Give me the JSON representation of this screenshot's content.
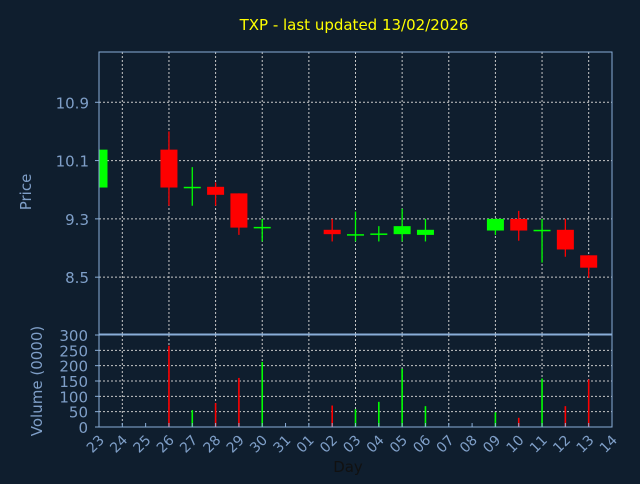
{
  "chart_data": [
    {
      "type": "candlestick",
      "title": "TXP - last updated 13/02/2026",
      "ylabel": "Price",
      "xlabel": "",
      "ylim": [
        7.72,
        11.59
      ],
      "yticks": [
        "8.5",
        "9.3",
        "10.1",
        "10.9"
      ],
      "grid": true,
      "x": [
        "23",
        "24",
        "25",
        "26",
        "27",
        "28",
        "29",
        "30",
        "31",
        "01",
        "02",
        "03",
        "04",
        "05",
        "06",
        "07",
        "08",
        "09",
        "10",
        "11",
        "12",
        "13",
        "14"
      ],
      "candles": [
        {
          "day": "23",
          "open": 9.73,
          "high": 10.25,
          "low": 9.73,
          "close": 10.25
        },
        {
          "day": "26",
          "open": 10.25,
          "high": 10.5,
          "low": 9.48,
          "close": 9.73
        },
        {
          "day": "27",
          "open": 9.73,
          "high": 10.01,
          "low": 9.48,
          "close": 9.74
        },
        {
          "day": "28",
          "open": 9.74,
          "high": 9.8,
          "low": 9.48,
          "close": 9.63
        },
        {
          "day": "29",
          "open": 9.65,
          "high": 9.65,
          "low": 9.08,
          "close": 9.18
        },
        {
          "day": "30",
          "open": 9.18,
          "high": 9.3,
          "low": 8.99,
          "close": 9.19
        },
        {
          "day": "02",
          "open": 9.15,
          "high": 9.3,
          "low": 8.99,
          "close": 9.09
        },
        {
          "day": "03",
          "open": 9.08,
          "high": 9.4,
          "low": 8.99,
          "close": 9.09
        },
        {
          "day": "04",
          "open": 9.09,
          "high": 9.2,
          "low": 8.99,
          "close": 9.1
        },
        {
          "day": "05",
          "open": 9.09,
          "high": 9.44,
          "low": 8.99,
          "close": 9.2
        },
        {
          "day": "06",
          "open": 9.08,
          "high": 9.3,
          "low": 8.99,
          "close": 9.15
        },
        {
          "day": "09",
          "open": 9.14,
          "high": 9.3,
          "low": 9.08,
          "close": 9.3
        },
        {
          "day": "10",
          "open": 9.3,
          "high": 9.41,
          "low": 9.0,
          "close": 9.14
        },
        {
          "day": "11",
          "open": 9.14,
          "high": 9.3,
          "low": 8.7,
          "close": 9.15
        },
        {
          "day": "12",
          "open": 9.15,
          "high": 9.3,
          "low": 8.78,
          "close": 8.88
        },
        {
          "day": "13",
          "open": 8.8,
          "high": 8.8,
          "low": 8.49,
          "close": 8.63
        }
      ]
    },
    {
      "type": "bar",
      "ylabel": "Volume (0000)",
      "xlabel": "Day",
      "ylim": [
        0,
        300
      ],
      "yticks": [
        "0",
        "50",
        "100",
        "150",
        "200",
        "250",
        "300"
      ],
      "grid": true,
      "x": [
        "23",
        "24",
        "25",
        "26",
        "27",
        "28",
        "29",
        "30",
        "31",
        "01",
        "02",
        "03",
        "04",
        "05",
        "06",
        "07",
        "08",
        "09",
        "10",
        "11",
        "12",
        "13",
        "14"
      ],
      "bars": [
        {
          "day": "26",
          "value": 265,
          "direction": "down"
        },
        {
          "day": "27",
          "value": 55,
          "direction": "up"
        },
        {
          "day": "28",
          "value": 78,
          "direction": "down"
        },
        {
          "day": "29",
          "value": 160,
          "direction": "down"
        },
        {
          "day": "30",
          "value": 212,
          "direction": "up"
        },
        {
          "day": "02",
          "value": 70,
          "direction": "down"
        },
        {
          "day": "03",
          "value": 58,
          "direction": "up"
        },
        {
          "day": "04",
          "value": 82,
          "direction": "up"
        },
        {
          "day": "05",
          "value": 190,
          "direction": "up"
        },
        {
          "day": "06",
          "value": 68,
          "direction": "up"
        },
        {
          "day": "09",
          "value": 48,
          "direction": "up"
        },
        {
          "day": "10",
          "value": 30,
          "direction": "down"
        },
        {
          "day": "11",
          "value": 158,
          "direction": "up"
        },
        {
          "day": "12",
          "value": 68,
          "direction": "down"
        },
        {
          "day": "13",
          "value": 155,
          "direction": "down"
        }
      ]
    }
  ],
  "colors": {
    "background": "#0f1e2e",
    "title": "#ffff00",
    "axis_text": "#7f9fc8",
    "frame": "#8aaed8",
    "grid": "#c8c8c8",
    "up": "#00ff00",
    "down": "#ff0000"
  }
}
